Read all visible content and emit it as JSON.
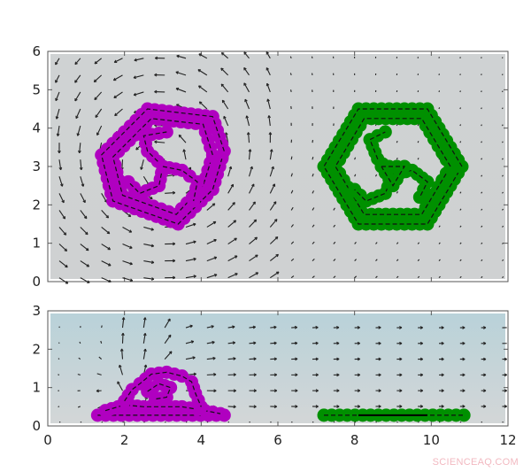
{
  "watermark": "SCIENCEAQ.COM",
  "chart_data": [
    {
      "type": "scatter",
      "panel": "top",
      "xlim": [
        0,
        12
      ],
      "ylim": [
        0,
        6
      ],
      "xticks": [],
      "yticks": [
        "0",
        "1",
        "2",
        "3",
        "4",
        "5",
        "6"
      ],
      "yticks_values": [
        0,
        1,
        2,
        3,
        4,
        5,
        6
      ],
      "background": "#cfd2d3",
      "quiver_field": true,
      "series": [
        {
          "color": "#b000c0",
          "paths": [
            {
              "closed": true,
              "points": [
                [
                  4.6,
                  3.4
                ],
                [
                  4.3,
                  4.3
                ],
                [
                  2.6,
                  4.5
                ],
                [
                  1.4,
                  3.3
                ],
                [
                  1.7,
                  2.1
                ],
                [
                  3.4,
                  1.5
                ],
                [
                  4.3,
                  2.4
                ]
              ]
            },
            {
              "closed": true,
              "points": [
                [
                  4.3,
                  3.3
                ],
                [
                  4.05,
                  4.1
                ],
                [
                  2.7,
                  4.25
                ],
                [
                  1.7,
                  3.25
                ],
                [
                  1.95,
                  2.25
                ],
                [
                  3.35,
                  1.75
                ],
                [
                  4.05,
                  2.5
                ]
              ]
            },
            {
              "closed": false,
              "points": [
                [
                  3.0,
                  3.0
                ],
                [
                  2.6,
                  3.4
                ],
                [
                  2.5,
                  3.8
                ],
                [
                  3.1,
                  3.9
                ]
              ]
            },
            {
              "closed": false,
              "points": [
                [
                  3.0,
                  3.0
                ],
                [
                  2.9,
                  2.5
                ],
                [
                  2.4,
                  2.3
                ],
                [
                  2.1,
                  2.6
                ]
              ]
            },
            {
              "closed": false,
              "points": [
                [
                  3.0,
                  3.0
                ],
                [
                  3.5,
                  2.9
                ],
                [
                  3.9,
                  2.6
                ],
                [
                  3.8,
                  2.1
                ]
              ]
            }
          ]
        },
        {
          "color": "#009000",
          "paths": [
            {
              "closed": true,
              "points": [
                [
                  10.8,
                  3.0
                ],
                [
                  9.9,
                  4.5
                ],
                [
                  8.1,
                  4.5
                ],
                [
                  7.2,
                  3.0
                ],
                [
                  8.1,
                  1.5
                ],
                [
                  9.9,
                  1.5
                ]
              ]
            },
            {
              "closed": true,
              "points": [
                [
                  10.5,
                  3.0
                ],
                [
                  9.75,
                  4.25
                ],
                [
                  8.25,
                  4.25
                ],
                [
                  7.5,
                  3.0
                ],
                [
                  8.25,
                  1.75
                ],
                [
                  9.75,
                  1.75
                ]
              ]
            },
            {
              "closed": false,
              "points": [
                [
                  9.0,
                  2.8
                ],
                [
                  8.6,
                  3.2
                ],
                [
                  8.4,
                  3.7
                ],
                [
                  8.8,
                  3.9
                ]
              ]
            },
            {
              "closed": false,
              "points": [
                [
                  9.0,
                  2.8
                ],
                [
                  8.8,
                  2.3
                ],
                [
                  8.3,
                  2.1
                ],
                [
                  8.0,
                  2.4
                ]
              ]
            },
            {
              "closed": false,
              "points": [
                [
                  9.0,
                  2.8
                ],
                [
                  9.5,
                  2.9
                ],
                [
                  9.9,
                  2.6
                ],
                [
                  9.7,
                  2.2
                ]
              ]
            },
            {
              "closed": false,
              "points": [
                [
                  8.7,
                  3.0
                ],
                [
                  9.3,
                  3.0
                ],
                [
                  9.0,
                  2.5
                ],
                [
                  8.7,
                  3.0
                ]
              ]
            }
          ]
        }
      ]
    },
    {
      "type": "scatter",
      "panel": "bottom",
      "xlim": [
        0,
        12
      ],
      "ylim": [
        0,
        3
      ],
      "xticks": [
        "0",
        "2",
        "4",
        "6",
        "8",
        "10",
        "12"
      ],
      "xticks_values": [
        0,
        2,
        4,
        6,
        8,
        10,
        12
      ],
      "yticks": [
        "0",
        "1",
        "2",
        "3"
      ],
      "yticks_values": [
        0,
        1,
        2,
        3
      ],
      "background": "#b9d2d9",
      "quiver_field": true,
      "series": [
        {
          "color": "#b000c0",
          "paths": [
            {
              "closed": false,
              "points": [
                [
                  1.3,
                  0.28
                ],
                [
                  4.6,
                  0.28
                ]
              ]
            },
            {
              "closed": false,
              "points": [
                [
                  1.5,
                  0.4
                ],
                [
                  2.0,
                  0.55
                ],
                [
                  2.5,
                  0.5
                ],
                [
                  3.0,
                  0.5
                ],
                [
                  3.5,
                  0.5
                ],
                [
                  4.1,
                  0.4
                ],
                [
                  4.5,
                  0.32
                ]
              ]
            },
            {
              "closed": false,
              "points": [
                [
                  2.0,
                  0.65
                ],
                [
                  2.2,
                  0.95
                ],
                [
                  2.4,
                  1.1
                ],
                [
                  2.7,
                  1.35
                ],
                [
                  3.1,
                  1.4
                ],
                [
                  3.5,
                  1.3
                ],
                [
                  3.75,
                  1.15
                ],
                [
                  3.85,
                  0.85
                ],
                [
                  4.0,
                  0.5
                ]
              ]
            },
            {
              "closed": false,
              "points": [
                [
                  2.6,
                  0.9
                ],
                [
                  2.9,
                  1.1
                ],
                [
                  3.2,
                  1.0
                ],
                [
                  3.1,
                  0.75
                ],
                [
                  2.8,
                  0.7
                ]
              ]
            }
          ]
        },
        {
          "color": "#009000",
          "paths": [
            {
              "closed": false,
              "points": [
                [
                  7.2,
                  0.28
                ],
                [
                  10.85,
                  0.28
                ]
              ]
            }
          ]
        },
        {
          "color": "#000000",
          "line": true,
          "points": [
            [
              8.1,
              0.28
            ],
            [
              9.9,
              0.28
            ]
          ]
        }
      ]
    }
  ]
}
